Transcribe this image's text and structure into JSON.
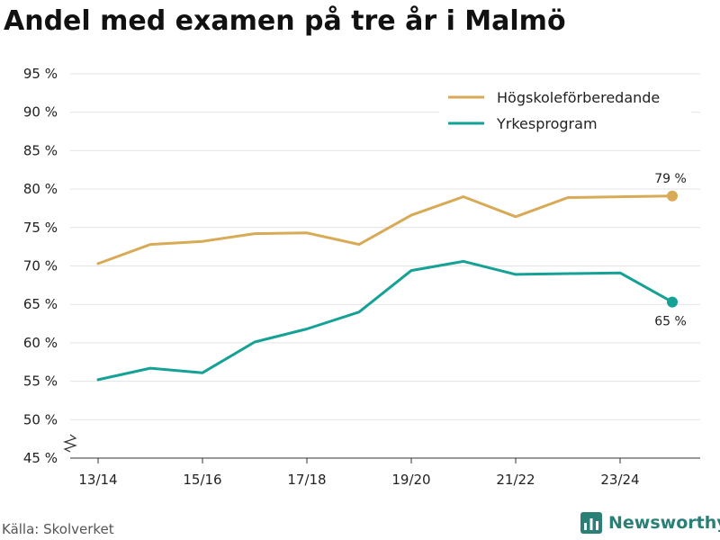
{
  "title": "Andel med examen på tre år i Malmö",
  "source": "Källa: Skolverket",
  "brand": {
    "name": "Newsworthy",
    "logo_icon": "newsworthy-logo-icon"
  },
  "colors": {
    "hogskole": "#d9aa55",
    "yrkes": "#16a196",
    "grid": "#e3e3e3",
    "axis": "#333333"
  },
  "chart_data": {
    "type": "line",
    "title": "Andel med examen på tre år i Malmö",
    "xlabel": "",
    "ylabel": "",
    "x": [
      "13/14",
      "14/15",
      "15/16",
      "16/17",
      "17/18",
      "18/19",
      "19/20",
      "20/21",
      "21/22",
      "22/23",
      "23/24",
      "24/25"
    ],
    "x_tick_labels": [
      "13/14",
      "15/16",
      "17/18",
      "19/20",
      "21/22",
      "23/24"
    ],
    "y_ticks": [
      45,
      50,
      55,
      60,
      65,
      70,
      75,
      80,
      85,
      90,
      95
    ],
    "y_tick_labels": [
      "45 %",
      "50 %",
      "55 %",
      "60 %",
      "65 %",
      "70 %",
      "75 %",
      "80 %",
      "85 %",
      "90 %",
      "95 %"
    ],
    "ylim": [
      45,
      95
    ],
    "axis_break": true,
    "grid": true,
    "legend_position": "top-right",
    "series": [
      {
        "name": "Högskoleförberedande",
        "color": "#d9aa55",
        "values": [
          70.3,
          72.8,
          73.2,
          74.2,
          74.3,
          72.8,
          76.6,
          79.0,
          76.4,
          78.9,
          79.0,
          79.1
        ],
        "end_label": "79 %",
        "end_label_position": "above"
      },
      {
        "name": "Yrkesprogram",
        "color": "#16a196",
        "values": [
          55.2,
          56.7,
          56.1,
          60.1,
          61.8,
          64.0,
          69.4,
          70.6,
          68.9,
          69.0,
          69.1,
          65.3
        ],
        "end_label": "65 %",
        "end_label_position": "below"
      }
    ]
  }
}
